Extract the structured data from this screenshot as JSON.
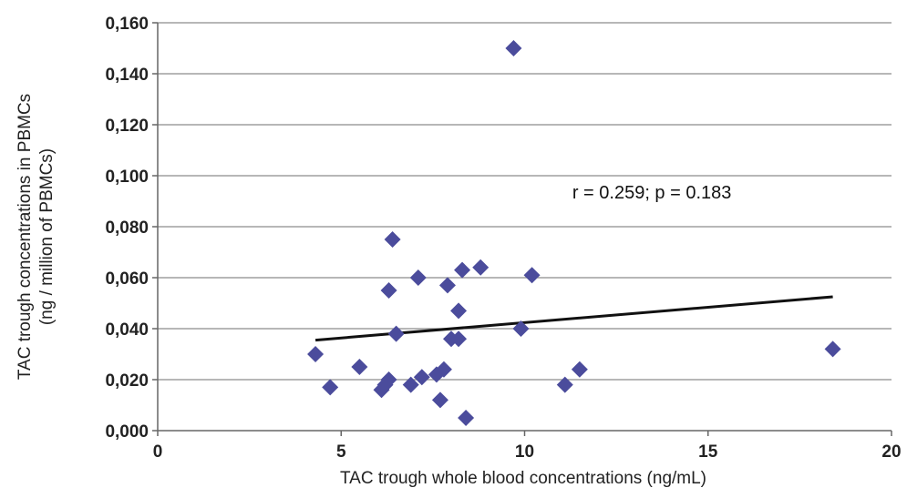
{
  "chart_data": {
    "type": "scatter",
    "xlabel": "TAC trough whole blood concentrations (ng/mL)",
    "ylabel_lines": [
      "TAC trough concentrations in PBMCs",
      "(ng / million of PBMCs)"
    ],
    "xlim": [
      0,
      20
    ],
    "ylim": [
      0,
      0.16
    ],
    "x_ticks": [
      0,
      5,
      10,
      15,
      20
    ],
    "x_tick_labels": [
      "0",
      "5",
      "10",
      "15",
      "20"
    ],
    "y_ticks": [
      0,
      0.02,
      0.04,
      0.06,
      0.08,
      0.1,
      0.12,
      0.14,
      0.16
    ],
    "y_tick_labels": [
      "0,000",
      "0,020",
      "0,040",
      "0,060",
      "0,080",
      "0,100",
      "0,120",
      "0,140",
      "0,160"
    ],
    "grid": "horizontal",
    "annotation": "r = 0.259; p = 0.183",
    "annotation_position": {
      "x": 11.3,
      "y": 0.091
    },
    "marker_color": "#4B4C9C",
    "line_color": "#111111",
    "trend_line": {
      "x": [
        4.3,
        18.4
      ],
      "y": [
        0.0355,
        0.0525
      ]
    },
    "points": [
      {
        "x": 4.3,
        "y": 0.03
      },
      {
        "x": 4.7,
        "y": 0.017
      },
      {
        "x": 5.5,
        "y": 0.025
      },
      {
        "x": 6.1,
        "y": 0.016
      },
      {
        "x": 6.2,
        "y": 0.018
      },
      {
        "x": 6.3,
        "y": 0.02
      },
      {
        "x": 6.3,
        "y": 0.055
      },
      {
        "x": 6.4,
        "y": 0.075
      },
      {
        "x": 6.5,
        "y": 0.038
      },
      {
        "x": 6.9,
        "y": 0.018
      },
      {
        "x": 7.1,
        "y": 0.06
      },
      {
        "x": 7.2,
        "y": 0.021
      },
      {
        "x": 7.6,
        "y": 0.022
      },
      {
        "x": 7.7,
        "y": 0.012
      },
      {
        "x": 7.8,
        "y": 0.024
      },
      {
        "x": 7.9,
        "y": 0.057
      },
      {
        "x": 8.0,
        "y": 0.036
      },
      {
        "x": 8.2,
        "y": 0.036
      },
      {
        "x": 8.2,
        "y": 0.047
      },
      {
        "x": 8.3,
        "y": 0.063
      },
      {
        "x": 8.4,
        "y": 0.005
      },
      {
        "x": 8.8,
        "y": 0.064
      },
      {
        "x": 9.7,
        "y": 0.15
      },
      {
        "x": 9.9,
        "y": 0.04
      },
      {
        "x": 10.2,
        "y": 0.061
      },
      {
        "x": 11.1,
        "y": 0.018
      },
      {
        "x": 11.5,
        "y": 0.024
      },
      {
        "x": 18.4,
        "y": 0.032
      }
    ]
  }
}
